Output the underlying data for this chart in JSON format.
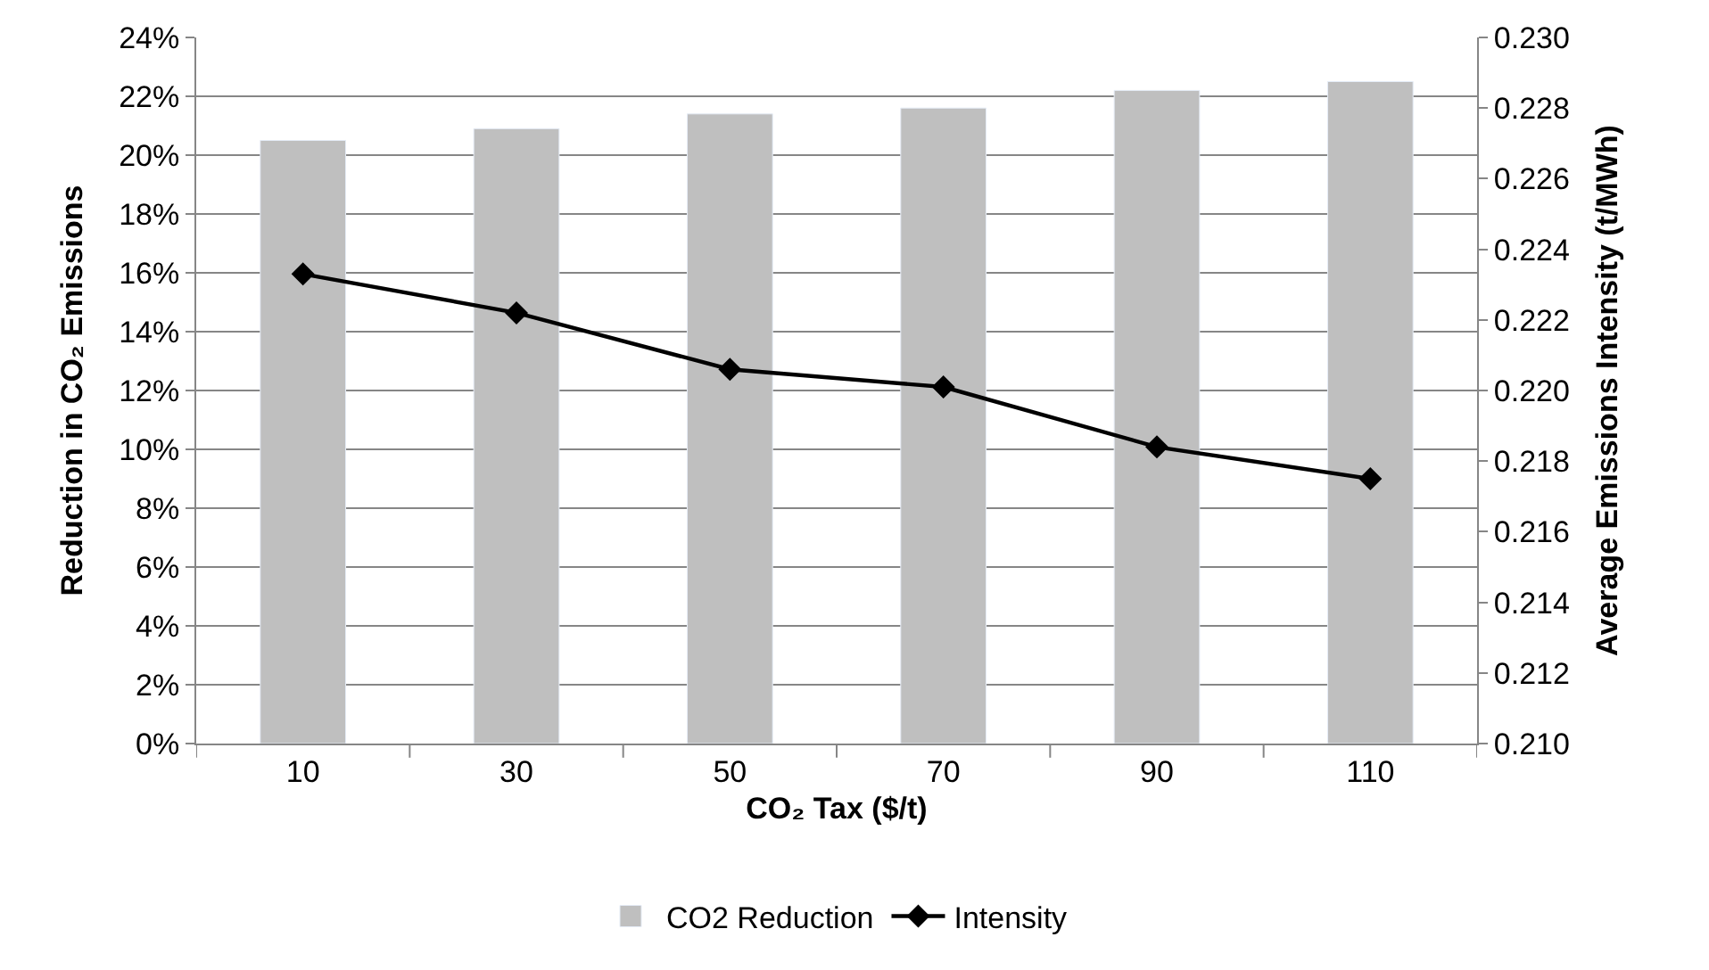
{
  "chart_data": {
    "type": "bar",
    "categories": [
      "10",
      "30",
      "50",
      "70",
      "90",
      "110"
    ],
    "xlabel": "CO₂ Tax ($/t)",
    "ylabel": "Reduction in CO₂ Emissions",
    "y2label": "Average Emissions Intensity (t/MWh)",
    "series": [
      {
        "name": "CO2 Reduction",
        "color": "#bfbfbf",
        "values": [
          20.5,
          20.9,
          21.4,
          21.6,
          22.2,
          22.5
        ]
      },
      {
        "name": "Intensity",
        "type": "line",
        "axis": "y2",
        "color": "#000000",
        "marker": "diamond",
        "values": [
          0.2233,
          0.2222,
          0.2206,
          0.2201,
          0.2184,
          0.2175
        ]
      }
    ],
    "ylim": [
      0,
      24
    ],
    "yticks": [
      {
        "value": 0,
        "label": "0%"
      },
      {
        "value": 2,
        "label": "2%"
      },
      {
        "value": 4,
        "label": "4%"
      },
      {
        "value": 6,
        "label": "6%"
      },
      {
        "value": 8,
        "label": "8%"
      },
      {
        "value": 10,
        "label": "10%"
      },
      {
        "value": 12,
        "label": "12%"
      },
      {
        "value": 14,
        "label": "14%"
      },
      {
        "value": 16,
        "label": "16%"
      },
      {
        "value": 18,
        "label": "18%"
      },
      {
        "value": 20,
        "label": "20%"
      },
      {
        "value": 22,
        "label": "22%"
      },
      {
        "value": 24,
        "label": "24%"
      }
    ],
    "y2lim": [
      0.21,
      0.23
    ],
    "y2ticks": [
      {
        "value": 0.21,
        "label": "0.210"
      },
      {
        "value": 0.212,
        "label": "0.212"
      },
      {
        "value": 0.214,
        "label": "0.214"
      },
      {
        "value": 0.216,
        "label": "0.216"
      },
      {
        "value": 0.218,
        "label": "0.218"
      },
      {
        "value": 0.22,
        "label": "0.220"
      },
      {
        "value": 0.222,
        "label": "0.222"
      },
      {
        "value": 0.224,
        "label": "0.224"
      },
      {
        "value": 0.226,
        "label": "0.226"
      },
      {
        "value": 0.228,
        "label": "0.228"
      },
      {
        "value": 0.23,
        "label": "0.230"
      }
    ],
    "grid": "y",
    "legend": "bottom"
  }
}
